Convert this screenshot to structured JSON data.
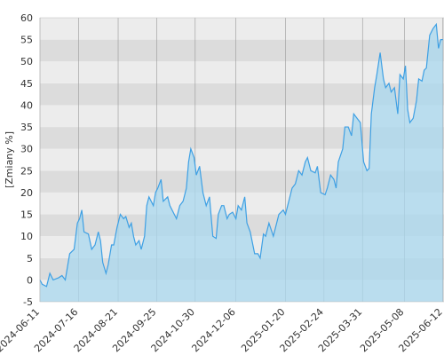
{
  "chart_data": {
    "type": "area",
    "y_label": "[Zmiany %]",
    "x": [
      "2024-06-11",
      "2024-06-13",
      "2024-06-17",
      "2024-06-20",
      "2024-06-23",
      "2024-06-28",
      "2024-07-01",
      "2024-07-04",
      "2024-07-06",
      "2024-07-08",
      "2024-07-12",
      "2024-07-15",
      "2024-07-17",
      "2024-07-19",
      "2024-07-21",
      "2024-07-25",
      "2024-07-28",
      "2024-07-31",
      "2024-08-03",
      "2024-08-05",
      "2024-08-07",
      "2024-08-10",
      "2024-08-12",
      "2024-08-15",
      "2024-08-17",
      "2024-08-20",
      "2024-08-23",
      "2024-08-26",
      "2024-08-28",
      "2024-08-31",
      "2024-09-02",
      "2024-09-04",
      "2024-09-06",
      "2024-09-09",
      "2024-09-11",
      "2024-09-14",
      "2024-09-16",
      "2024-09-18",
      "2024-09-22",
      "2024-09-24",
      "2024-09-26",
      "2024-09-29",
      "2024-10-01",
      "2024-10-05",
      "2024-10-07",
      "2024-10-11",
      "2024-10-13",
      "2024-10-16",
      "2024-10-19",
      "2024-10-22",
      "2024-10-24",
      "2024-10-26",
      "2024-10-29",
      "2024-10-31",
      "2024-11-03",
      "2024-11-06",
      "2024-11-09",
      "2024-11-12",
      "2024-11-15",
      "2024-11-18",
      "2024-11-20",
      "2024-11-23",
      "2024-11-25",
      "2024-11-28",
      "2024-11-30",
      "2024-12-03",
      "2024-12-06",
      "2024-12-08",
      "2024-12-11",
      "2024-12-14",
      "2024-12-16",
      "2024-12-19",
      "2024-12-23",
      "2024-12-26",
      "2024-12-28",
      "2024-12-31",
      "2025-01-02",
      "2025-01-05",
      "2025-01-09",
      "2025-01-11",
      "2025-01-14",
      "2025-01-18",
      "2025-01-20",
      "2025-01-22",
      "2025-01-26",
      "2025-01-29",
      "2025-02-01",
      "2025-02-04",
      "2025-02-07",
      "2025-02-09",
      "2025-02-12",
      "2025-02-16",
      "2025-02-18",
      "2025-02-21",
      "2025-02-25",
      "2025-02-27",
      "2025-03-02",
      "2025-03-05",
      "2025-03-07",
      "2025-03-09",
      "2025-03-13",
      "2025-03-15",
      "2025-03-18",
      "2025-03-21",
      "2025-03-23",
      "2025-03-26",
      "2025-03-29",
      "2025-04-01",
      "2025-04-04",
      "2025-04-06",
      "2025-04-08",
      "2025-04-11",
      "2025-04-13",
      "2025-04-16",
      "2025-04-19",
      "2025-04-21",
      "2025-04-24",
      "2025-04-26",
      "2025-04-29",
      "2025-05-02",
      "2025-05-04",
      "2025-05-07",
      "2025-05-09",
      "2025-05-11",
      "2025-05-13",
      "2025-05-16",
      "2025-05-19",
      "2025-05-21",
      "2025-05-24",
      "2025-05-26",
      "2025-05-28",
      "2025-05-31",
      "2025-06-03",
      "2025-06-06",
      "2025-06-08",
      "2025-06-10",
      "2025-06-12"
    ],
    "values": [
      0,
      -1,
      -1.5,
      1.5,
      0,
      0.5,
      1,
      0,
      3,
      6,
      7,
      13,
      14,
      16,
      11,
      10.5,
      7,
      8,
      11,
      9,
      4,
      1.5,
      3.5,
      8,
      8,
      12,
      15,
      14,
      14.5,
      12,
      13,
      10,
      8,
      9,
      7,
      10,
      17,
      19,
      17,
      20,
      21,
      23,
      18,
      19,
      17,
      15,
      14,
      17,
      18,
      21,
      27,
      30,
      28,
      24,
      26,
      20,
      17,
      19,
      10,
      9.5,
      15,
      17,
      17,
      14,
      15,
      15.5,
      14,
      17,
      16,
      19,
      13,
      11,
      6,
      6,
      5,
      10.5,
      10,
      13,
      10,
      12,
      15,
      16,
      15,
      17,
      21,
      22,
      25,
      24,
      27,
      28,
      25,
      24.5,
      26,
      20,
      19.5,
      21,
      24,
      23,
      21,
      27,
      30,
      35,
      35,
      33,
      38,
      37,
      36,
      27,
      25,
      25.5,
      38,
      44,
      47,
      52,
      46,
      44,
      45,
      43,
      44,
      38,
      47,
      46,
      49,
      39,
      36,
      37,
      41,
      46,
      45.5,
      48,
      48.5,
      56,
      57.5,
      58.5,
      53,
      55,
      55
    ],
    "color": "#3ea0e4",
    "fill": "#a9d8ef",
    "xlim": [
      "2024-06-11",
      "2025-06-13"
    ],
    "xticks": [
      "2024-06-11",
      "2024-07-16",
      "2024-08-21",
      "2024-09-25",
      "2024-10-30",
      "2024-12-06",
      "2025-01-20",
      "2025-02-24",
      "2025-03-31",
      "2025-05-08",
      "2025-06-12"
    ],
    "ylim": [
      -5,
      60
    ],
    "yticks": [
      -5,
      0,
      5,
      10,
      15,
      20,
      25,
      30,
      35,
      40,
      45,
      50,
      55,
      60
    ],
    "grid": true
  }
}
